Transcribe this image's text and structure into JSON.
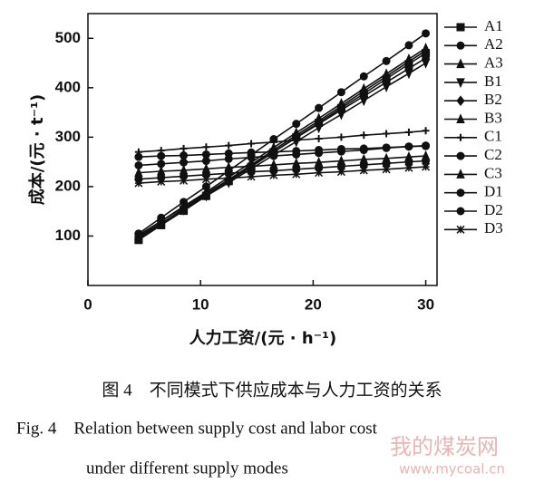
{
  "chart_data": {
    "type": "line",
    "xlabel": "人力工资/(元 · h⁻¹)",
    "ylabel": "成本/(元 · t⁻¹)",
    "x": [
      4.5,
      6.5,
      8.5,
      10.5,
      12.5,
      14.5,
      16.5,
      18.5,
      20.5,
      22.5,
      24.5,
      26.5,
      28.5,
      30
    ],
    "xlim": [
      0,
      31
    ],
    "xticks": [
      0,
      10,
      20,
      30
    ],
    "ylim": [
      0,
      550
    ],
    "yticks": [
      100,
      200,
      300,
      400,
      500
    ],
    "legend": "right",
    "series": [
      {
        "name": "A1",
        "color": "#111",
        "marker": "square",
        "values": [
          92,
          122,
          151,
          181,
          211,
          240,
          270,
          300,
          329,
          359,
          388,
          418,
          448,
          470
        ]
      },
      {
        "name": "A2",
        "color": "#111",
        "marker": "circle",
        "values": [
          105,
          137,
          169,
          200,
          232,
          264,
          296,
          327,
          359,
          391,
          423,
          454,
          486,
          510
        ]
      },
      {
        "name": "A3",
        "color": "#111",
        "marker": "triangle",
        "values": [
          100,
          130,
          160,
          189,
          219,
          249,
          279,
          309,
          338,
          368,
          398,
          428,
          458,
          480
        ]
      },
      {
        "name": "B1",
        "color": "#111",
        "marker": "triangle-down",
        "values": [
          98,
          126,
          153,
          181,
          208,
          236,
          264,
          291,
          319,
          346,
          374,
          402,
          429,
          450
        ]
      },
      {
        "name": "B2",
        "color": "#111",
        "marker": "diamond",
        "values": [
          102,
          130,
          158,
          186,
          214,
          242,
          270,
          299,
          327,
          355,
          383,
          411,
          439,
          460
        ]
      },
      {
        "name": "B3",
        "color": "#111",
        "marker": "triangle",
        "values": [
          95,
          125,
          155,
          184,
          214,
          244,
          274,
          304,
          333,
          363,
          393,
          423,
          453,
          475
        ]
      },
      {
        "name": "C1",
        "color": "#111",
        "marker": "plus",
        "values": [
          270,
          273,
          277,
          280,
          283,
          287,
          290,
          294,
          297,
          300,
          304,
          307,
          310,
          313
        ]
      },
      {
        "name": "C2",
        "color": "#111",
        "marker": "circle",
        "values": [
          243,
          246,
          249,
          252,
          256,
          259,
          262,
          265,
          268,
          271,
          274,
          278,
          281,
          283
        ]
      },
      {
        "name": "C3",
        "color": "#111",
        "marker": "triangle",
        "values": [
          228,
          231,
          233,
          236,
          239,
          241,
          244,
          247,
          249,
          252,
          255,
          257,
          260,
          262
        ]
      },
      {
        "name": "D1",
        "color": "#111",
        "marker": "circle",
        "values": [
          215,
          218,
          221,
          224,
          227,
          230,
          232,
          235,
          238,
          241,
          244,
          247,
          250,
          252
        ]
      },
      {
        "name": "D2",
        "color": "#111",
        "marker": "circle",
        "values": [
          260,
          262,
          263,
          265,
          267,
          269,
          270,
          272,
          274,
          276,
          277,
          279,
          281,
          282
        ]
      },
      {
        "name": "D3",
        "color": "#111",
        "marker": "star",
        "values": [
          207,
          210,
          212,
          215,
          217,
          220,
          223,
          225,
          228,
          230,
          233,
          235,
          238,
          240
        ]
      }
    ]
  },
  "caption": {
    "zh": "图 4　不同模式下供应成本与人力工资的关系",
    "en": [
      "Fig. 4　Relation between supply cost and labor cost",
      "under different supply modes"
    ]
  },
  "watermark": {
    "name": "我的煤炭网",
    "url": "www.mycoal.cn"
  }
}
